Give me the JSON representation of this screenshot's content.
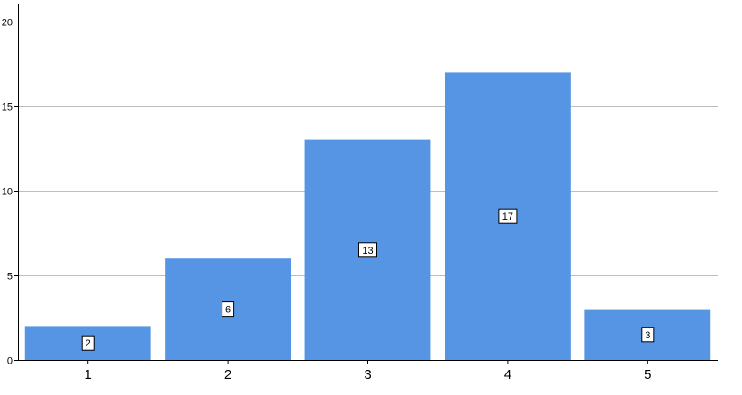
{
  "chart_data": {
    "type": "bar",
    "categories": [
      "1",
      "2",
      "3",
      "4",
      "5"
    ],
    "values": [
      2,
      6,
      13,
      17,
      3
    ],
    "data_labels": [
      "2",
      "6",
      "13",
      "17",
      "3"
    ],
    "title": "",
    "xlabel": "",
    "ylabel": "",
    "ylim": [
      0,
      20
    ],
    "yticks": [
      0,
      5,
      10,
      15,
      20
    ],
    "ytick_labels": [
      "0",
      "5",
      "10",
      "15",
      "20"
    ],
    "grid": true,
    "legend": "none",
    "bar_color": "#5595e3"
  }
}
